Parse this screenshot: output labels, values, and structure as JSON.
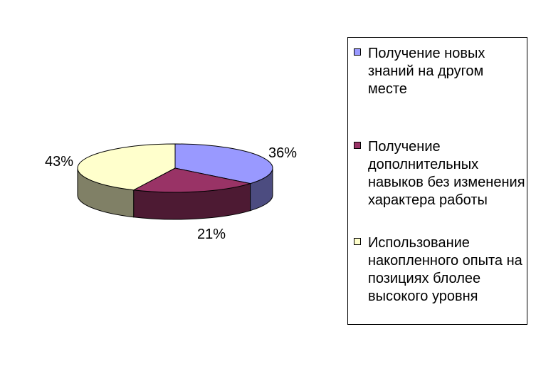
{
  "chart_data": {
    "type": "pie",
    "title": "",
    "legend_position": "right",
    "slices": [
      {
        "label": "Получение новых знаний на другом месте",
        "value": 36,
        "display": "36%",
        "color": "#9999ff",
        "side_color": "#4c4c80"
      },
      {
        "label": "Получение дополнительных навыков без изменения характера работы",
        "value": 21,
        "display": "21%",
        "color": "#993366",
        "side_color": "#4d1a33"
      },
      {
        "label": "Использование накопленного опыта на позициях блолее высокого уровня",
        "value": 43,
        "display": "43%",
        "color": "#ffffcc",
        "side_color": "#808066"
      }
    ]
  }
}
